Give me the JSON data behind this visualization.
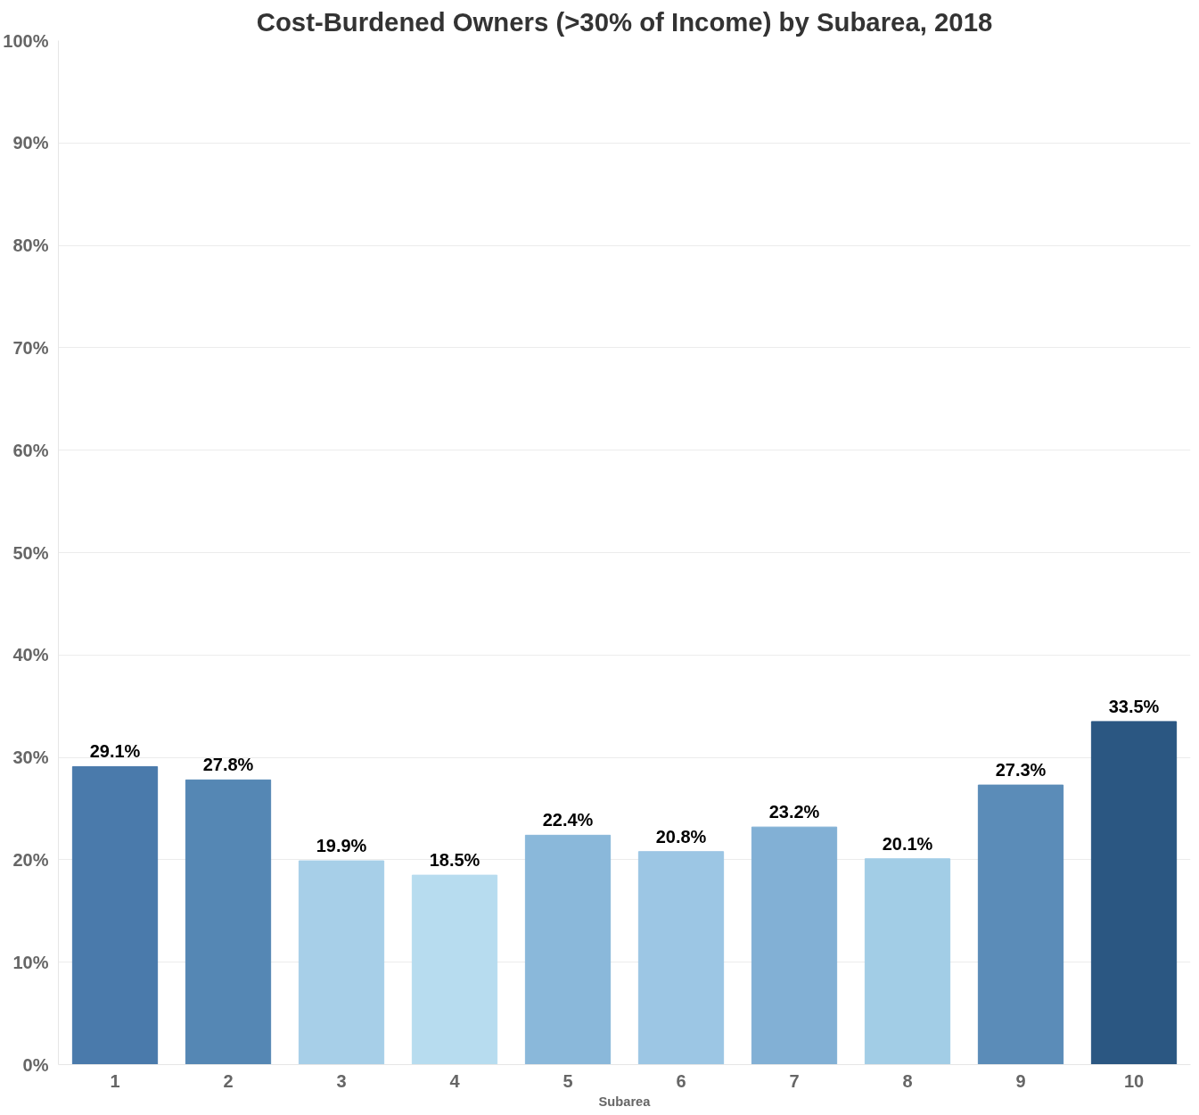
{
  "chart_data": {
    "type": "bar",
    "title": "Cost-Burdened Owners (>30% of Income) by Subarea, 2018",
    "xlabel": "Subarea",
    "categories": [
      "1",
      "2",
      "3",
      "4",
      "5",
      "6",
      "7",
      "8",
      "9",
      "10"
    ],
    "values": [
      29.1,
      27.8,
      19.9,
      18.5,
      22.4,
      20.8,
      23.2,
      20.1,
      27.3,
      33.5
    ],
    "value_labels": [
      "29.1%",
      "27.8%",
      "19.9%",
      "18.5%",
      "22.4%",
      "20.8%",
      "23.2%",
      "20.1%",
      "27.3%",
      "33.5%"
    ],
    "colors": [
      "#4a7aab",
      "#5587b4",
      "#a7cfe8",
      "#b7dcef",
      "#8ab8da",
      "#9cc6e4",
      "#82b0d5",
      "#a2cde6",
      "#5b8cb8",
      "#2b5782"
    ],
    "ylim": [
      0,
      100
    ],
    "yticks": [
      {
        "value": 0,
        "label": "0%"
      },
      {
        "value": 10,
        "label": "10%"
      },
      {
        "value": 20,
        "label": "20%"
      },
      {
        "value": 30,
        "label": "30%"
      },
      {
        "value": 40,
        "label": "40%"
      },
      {
        "value": 50,
        "label": "50%"
      },
      {
        "value": 60,
        "label": "60%"
      },
      {
        "value": 70,
        "label": "70%"
      },
      {
        "value": 80,
        "label": "80%"
      },
      {
        "value": 90,
        "label": "90%"
      },
      {
        "value": 100,
        "label": "100%"
      }
    ],
    "grid": "y"
  }
}
